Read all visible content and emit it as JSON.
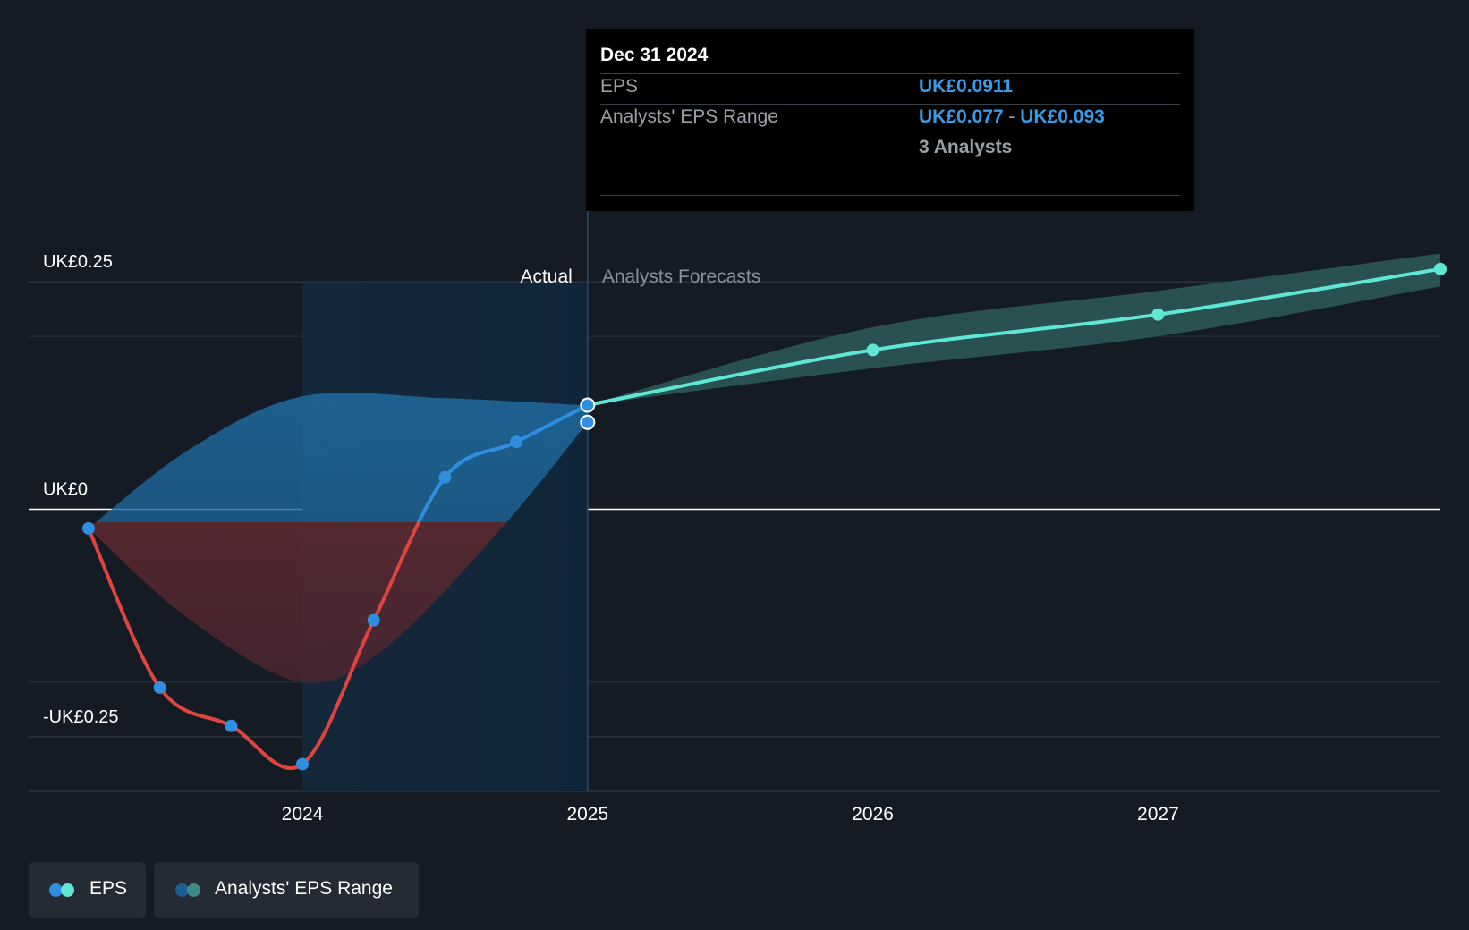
{
  "chart_data": {
    "type": "line",
    "y_axis": {
      "ticks": [
        {
          "value": 0.25,
          "label": "UK£0.25"
        },
        {
          "value": 0,
          "label": "UK£0"
        },
        {
          "value": -0.25,
          "label": "-UK£0.25"
        }
      ],
      "range": [
        -0.31,
        0.31
      ]
    },
    "x_axis": {
      "ticks": [
        {
          "value": 2024,
          "label": "2024"
        },
        {
          "value": 2025,
          "label": "2025"
        },
        {
          "value": 2026,
          "label": "2026"
        },
        {
          "value": 2027,
          "label": "2027"
        }
      ],
      "range": [
        2023.04,
        2027.99
      ]
    },
    "section_labels": {
      "actual": "Actual",
      "forecast": "Analysts Forecasts"
    },
    "highlight_start": 2024.0,
    "divider_x": 2025.0,
    "actual_series": {
      "name": "EPS",
      "points": [
        {
          "x": 2023.25,
          "y": -0.021
        },
        {
          "x": 2023.5,
          "y": -0.196
        },
        {
          "x": 2023.75,
          "y": -0.238
        },
        {
          "x": 2024.0,
          "y": -0.28
        },
        {
          "x": 2024.25,
          "y": -0.122
        },
        {
          "x": 2024.5,
          "y": 0.035
        },
        {
          "x": 2024.75,
          "y": 0.074
        },
        {
          "x": 2025.0,
          "y": 0.1145
        }
      ]
    },
    "actual_band": {
      "upper": [
        [
          2023.25,
          -0.021
        ],
        [
          2023.6,
          0.065
        ],
        [
          2024.0,
          0.124
        ],
        [
          2024.5,
          0.122
        ],
        [
          2025.0,
          0.114
        ]
      ],
      "lower": [
        [
          2023.25,
          -0.021
        ],
        [
          2023.6,
          -0.12
        ],
        [
          2024.0,
          -0.19
        ],
        [
          2024.3,
          -0.15
        ],
        [
          2024.7,
          -0.02
        ],
        [
          2025.0,
          0.0955
        ]
      ]
    },
    "estimate_point": {
      "x": 2025.0,
      "y": 0.0955
    },
    "forecast_series": {
      "name": "EPS",
      "points": [
        {
          "x": 2025.0,
          "y": 0.1145
        },
        {
          "x": 2026.0,
          "y": 0.175
        },
        {
          "x": 2027.0,
          "y": 0.214
        },
        {
          "x": 2027.99,
          "y": 0.264
        }
      ]
    },
    "forecast_band": {
      "upper": [
        [
          2025.0,
          0.1145
        ],
        [
          2026.0,
          0.2
        ],
        [
          2027.0,
          0.24
        ],
        [
          2027.99,
          0.281
        ]
      ],
      "lower": [
        [
          2025.0,
          0.1145
        ],
        [
          2026.0,
          0.155
        ],
        [
          2027.0,
          0.19
        ],
        [
          2027.99,
          0.245
        ]
      ]
    },
    "colors": {
      "negative": "#e0443f",
      "positive": "#2f8fde",
      "forecast": "#5ee8d4",
      "actual_band_pos": "#1d5f8f",
      "actual_band_neg": "#6a2a30",
      "forecast_band": "#2d5a5a"
    }
  },
  "tooltip": {
    "date": "Dec 31 2024",
    "eps_label": "EPS",
    "eps_value": "UK£0.0911",
    "range_label": "Analysts' EPS Range",
    "range_low": "UK£0.077",
    "range_sep": "-",
    "range_high": "UK£0.093",
    "analysts": "3 Analysts"
  },
  "legend": {
    "eps": "EPS",
    "range": "Analysts' EPS Range"
  }
}
